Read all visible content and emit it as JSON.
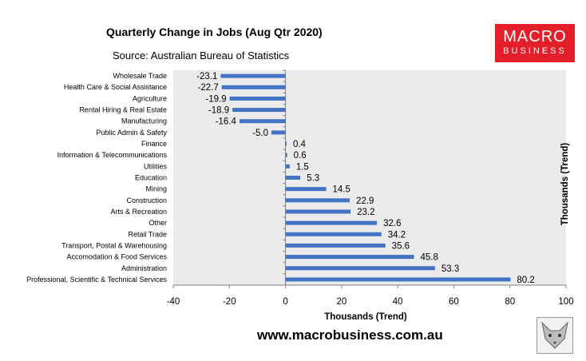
{
  "header": {
    "title": "Quarterly Change in Jobs (Aug Qtr 2020)",
    "subtitle": "Source: Australian Bureau of Statistics"
  },
  "logo": {
    "line1": "MACRO",
    "line2": "BUSINESS"
  },
  "footer": {
    "url": "www.macrobusiness.com.au"
  },
  "colors": {
    "bar": "#4472c4",
    "plot_bg": "#ebebeb",
    "logo_bg": "#e3202a"
  },
  "chart_data": {
    "type": "bar",
    "orientation": "horizontal",
    "title": "Quarterly Change in Jobs (Aug Qtr 2020)",
    "subtitle": "Source: Australian Bureau of Statistics",
    "xlabel": "Thousands (Trend)",
    "ylabel_right": "Thousands (Trend)",
    "xlim": [
      -40,
      100
    ],
    "xticks": [
      -40,
      -20,
      0,
      20,
      40,
      60,
      80,
      100
    ],
    "categories": [
      "Wholesale Trade",
      "Health Care & Social Assistance",
      "Agriculture",
      "Rental Hiring & Real Estate",
      "Manufacturing",
      "Public Admin & Safety",
      "Finance",
      "Information & Telecommunications",
      "Utilities",
      "Education",
      "Mining",
      "Construction",
      "Arts & Recreation",
      "Other",
      "Retail Trade",
      "Transport, Postal & Warehousing",
      "Accomodation & Food Services",
      "Administration",
      "Professional, Scientific & Technical Services"
    ],
    "values": [
      -23.1,
      -22.7,
      -19.9,
      -18.9,
      -16.4,
      -5.0,
      0.4,
      0.6,
      1.5,
      5.3,
      14.5,
      22.9,
      23.2,
      32.6,
      34.2,
      35.6,
      45.8,
      53.3,
      80.2
    ],
    "value_labels": [
      "-23.1",
      "-22.7",
      "-19.9",
      "-18.9",
      "-16.4",
      "-5.0",
      "0.4",
      "0.6",
      "1.5",
      "5.3",
      "14.5",
      "22.9",
      "23.2",
      "32.6",
      "34.2",
      "35.6",
      "45.8",
      "53.3",
      "80.2"
    ],
    "grid": false
  }
}
